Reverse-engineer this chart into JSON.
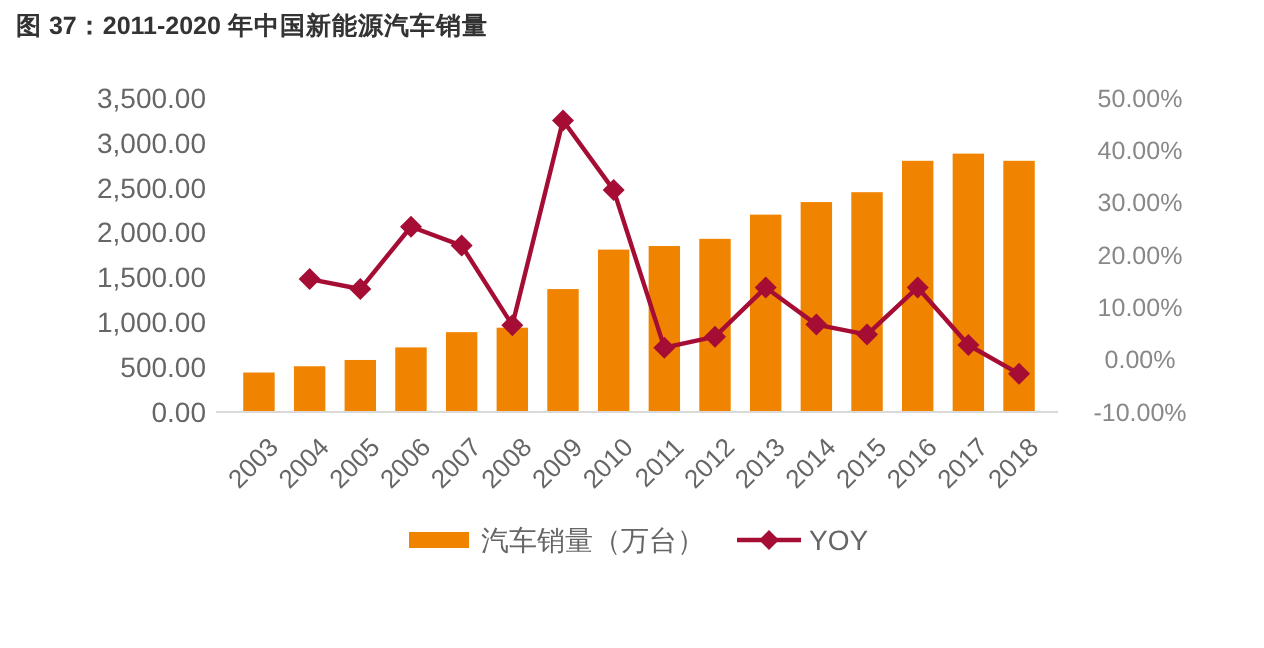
{
  "chart_data": {
    "type": "bar",
    "title": "图 37：2011-2020 年中国新能源汽车销量",
    "categories": [
      "2003",
      "2004",
      "2005",
      "2006",
      "2007",
      "2008",
      "2009",
      "2010",
      "2011",
      "2012",
      "2013",
      "2014",
      "2015",
      "2016",
      "2017",
      "2018"
    ],
    "series": [
      {
        "name": "汽车销量（万台）",
        "color": "#f08300",
        "values": [
          440,
          510,
          580,
          720,
          890,
          940,
          1370,
          1810,
          1850,
          1930,
          2200,
          2340,
          2450,
          2800,
          2880,
          2800
        ]
      },
      {
        "name": "YOY",
        "type": "line",
        "axis": "y2",
        "color": "#a50d35",
        "marker": "diamond",
        "values": [
          null,
          15.4,
          13.5,
          25.4,
          21.8,
          6.6,
          45.7,
          32.4,
          2.3,
          4.4,
          13.8,
          6.7,
          4.8,
          13.8,
          2.8,
          -2.7
        ]
      }
    ],
    "ylim": [
      0,
      3500
    ],
    "yticks": [
      {
        "value": 0,
        "label": "0.00"
      },
      {
        "value": 500,
        "label": "500.00"
      },
      {
        "value": 1000,
        "label": "1,000.00"
      },
      {
        "value": 1500,
        "label": "1,500.00"
      },
      {
        "value": 2000,
        "label": "2,000.00"
      },
      {
        "value": 2500,
        "label": "2,500.00"
      },
      {
        "value": 3000,
        "label": "3,000.00"
      },
      {
        "value": 3500,
        "label": "3,500.00"
      }
    ],
    "y2lim": [
      -10,
      50
    ],
    "y2ticks": [
      {
        "value": -10,
        "label": "-10.00%"
      },
      {
        "value": 0,
        "label": "0.00%"
      },
      {
        "value": 10,
        "label": "10.00%"
      },
      {
        "value": 20,
        "label": "20.00%"
      },
      {
        "value": 30,
        "label": "30.00%"
      },
      {
        "value": 40,
        "label": "40.00%"
      },
      {
        "value": 50,
        "label": "50.00%"
      }
    ],
    "grid": false,
    "legend": "bottom"
  }
}
